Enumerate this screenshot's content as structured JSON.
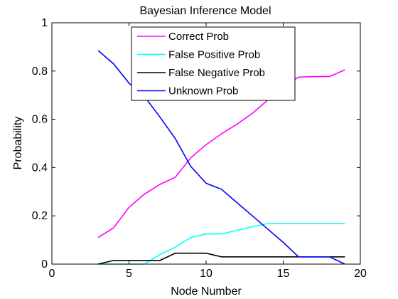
{
  "chart_data": {
    "type": "line",
    "title": "Bayesian Inference Model",
    "xlabel": "Node Number",
    "ylabel": "Probability",
    "xlim": [
      0,
      20
    ],
    "ylim": [
      0,
      1
    ],
    "xticks": [
      0,
      5,
      10,
      15,
      20
    ],
    "yticks": [
      0,
      0.2,
      0.4,
      0.6,
      0.8,
      1
    ],
    "grid": false,
    "legend_position": "top-center",
    "series": [
      {
        "name": "Correct Prob",
        "color": "#ff00ff",
        "points": [
          [
            3,
            0.11
          ],
          [
            4,
            0.15
          ],
          [
            5,
            0.235
          ],
          [
            6,
            0.29
          ],
          [
            7,
            0.33
          ],
          [
            8,
            0.36
          ],
          [
            9,
            0.44
          ],
          [
            10,
            0.495
          ],
          [
            11,
            0.54
          ],
          [
            12,
            0.58
          ],
          [
            13,
            0.625
          ],
          [
            14,
            0.68
          ],
          [
            15,
            0.735
          ],
          [
            16,
            0.775
          ],
          [
            17,
            0.777
          ],
          [
            18,
            0.777
          ],
          [
            19,
            0.805
          ]
        ]
      },
      {
        "name": "False Positive Prob",
        "color": "#00ffff",
        "points": [
          [
            3,
            0
          ],
          [
            4,
            0
          ],
          [
            5,
            0
          ],
          [
            6,
            0
          ],
          [
            7,
            0.04
          ],
          [
            8,
            0.07
          ],
          [
            9,
            0.11
          ],
          [
            10,
            0.125
          ],
          [
            11,
            0.125
          ],
          [
            12,
            0.14
          ],
          [
            13,
            0.155
          ],
          [
            14,
            0.168
          ],
          [
            15,
            0.168
          ],
          [
            16,
            0.168
          ],
          [
            17,
            0.168
          ],
          [
            18,
            0.168
          ],
          [
            19,
            0.168
          ]
        ]
      },
      {
        "name": "False Negative Prob",
        "color": "#000000",
        "points": [
          [
            3,
            0
          ],
          [
            4,
            0.015
          ],
          [
            5,
            0.015
          ],
          [
            6,
            0.015
          ],
          [
            7,
            0.015
          ],
          [
            8,
            0.045
          ],
          [
            9,
            0.045
          ],
          [
            10,
            0.045
          ],
          [
            11,
            0.03
          ],
          [
            12,
            0.03
          ],
          [
            13,
            0.03
          ],
          [
            14,
            0.03
          ],
          [
            15,
            0.03
          ],
          [
            16,
            0.03
          ],
          [
            17,
            0.03
          ],
          [
            18,
            0.03
          ],
          [
            19,
            0.03
          ]
        ]
      },
      {
        "name": "Unknown Prob",
        "color": "#0000ff",
        "points": [
          [
            3,
            0.885
          ],
          [
            4,
            0.83
          ],
          [
            5,
            0.75
          ],
          [
            6,
            0.695
          ],
          [
            7,
            0.61
          ],
          [
            8,
            0.52
          ],
          [
            9,
            0.405
          ],
          [
            10,
            0.335
          ],
          [
            11,
            0.31
          ],
          [
            12,
            0.255
          ],
          [
            13,
            0.2
          ],
          [
            14,
            0.145
          ],
          [
            15,
            0.09
          ],
          [
            16,
            0.03
          ],
          [
            17,
            0.03
          ],
          [
            18,
            0.03
          ],
          [
            19,
            0
          ]
        ]
      }
    ]
  }
}
